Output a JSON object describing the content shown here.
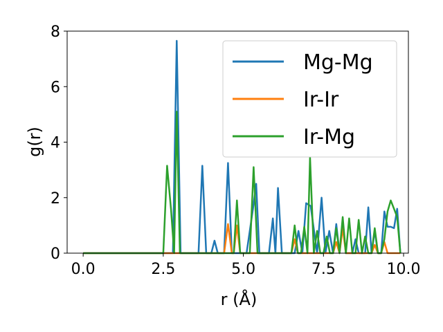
{
  "chart_data": {
    "type": "line",
    "xlabel": "r (Å)",
    "ylabel": "g(r)",
    "xlim": [
      -0.5,
      10.15
    ],
    "ylim": [
      0,
      8
    ],
    "xticks": [
      0.0,
      2.5,
      5.0,
      7.5,
      10.0
    ],
    "xtick_labels": [
      "0.0",
      "2.5",
      "5.0",
      "7.5",
      "10.0"
    ],
    "yticks": [
      0,
      2,
      4,
      6,
      8
    ],
    "ytick_labels": [
      "0",
      "2",
      "4",
      "6",
      "8"
    ],
    "grid": false,
    "legend_position": "top-right",
    "series": [
      {
        "name": "Mg-Mg",
        "color": "#1f77b4",
        "x": [
          0.0,
          2.8,
          2.92,
          3.04,
          3.6,
          3.72,
          3.84,
          4.0,
          4.1,
          4.2,
          4.4,
          4.52,
          4.64,
          5.1,
          5.3,
          5.4,
          5.5,
          5.8,
          5.92,
          6.0,
          6.08,
          6.2,
          6.6,
          6.72,
          6.84,
          6.96,
          7.1,
          7.3,
          7.44,
          7.56,
          7.68,
          7.8,
          7.9,
          8.0,
          8.1,
          8.2,
          8.4,
          8.5,
          8.6,
          8.8,
          8.9,
          9.0,
          9.1,
          9.2,
          9.3,
          9.4,
          9.5,
          9.6,
          9.7,
          9.8,
          9.9
        ],
        "y": [
          0,
          0,
          7.65,
          0,
          0,
          3.15,
          0,
          0,
          0.45,
          0,
          0,
          3.25,
          0,
          0,
          1.6,
          2.5,
          0,
          0,
          1.25,
          0,
          2.35,
          0,
          0,
          0.8,
          0,
          1.8,
          1.7,
          0,
          2.0,
          0,
          0.8,
          0,
          1.05,
          0,
          1.1,
          0,
          0,
          0.5,
          0,
          0,
          1.65,
          0,
          0.8,
          0,
          0,
          1.5,
          0.95,
          0.95,
          0.9,
          1.6,
          0
        ]
      },
      {
        "name": "Ir-Ir",
        "color": "#ff7f0e",
        "x": [
          0.0,
          4.4,
          4.52,
          4.64,
          4.7,
          4.8,
          4.9,
          6.5,
          6.6,
          6.7,
          7.8,
          7.9,
          8.0,
          8.1,
          8.2,
          9.0,
          9.1,
          9.2,
          9.3,
          9.4,
          9.5,
          9.6,
          9.9
        ],
        "y": [
          0,
          0,
          1.05,
          0,
          0,
          1.0,
          0,
          0,
          0.5,
          0,
          0,
          0.4,
          0,
          0.9,
          0,
          0,
          0.3,
          0,
          0,
          0.4,
          0,
          0,
          0
        ]
      },
      {
        "name": "Ir-Mg",
        "color": "#2ca02c",
        "x": [
          0.0,
          2.5,
          2.62,
          2.74,
          2.84,
          2.92,
          3.02,
          4.7,
          4.8,
          4.9,
          5.2,
          5.32,
          5.44,
          6.5,
          6.6,
          6.7,
          6.8,
          6.9,
          7.0,
          7.08,
          7.2,
          7.3,
          7.4,
          7.5,
          7.6,
          7.7,
          7.8,
          7.9,
          8.0,
          8.1,
          8.2,
          8.3,
          8.4,
          8.5,
          8.6,
          8.7,
          8.8,
          8.9,
          9.0,
          9.1,
          9.2,
          9.3,
          9.4,
          9.5,
          9.6,
          9.7,
          9.8,
          9.9
        ],
        "y": [
          0,
          0,
          3.15,
          1.6,
          0,
          5.1,
          0,
          0,
          1.9,
          0,
          0,
          3.1,
          0,
          0,
          1.0,
          0,
          0,
          0.95,
          0,
          3.45,
          0,
          0.8,
          0,
          0,
          0.6,
          0,
          0,
          0.9,
          0,
          1.3,
          0,
          1.25,
          0,
          0,
          1.2,
          0,
          0.6,
          0,
          0,
          0.9,
          0,
          0,
          0.5,
          1.5,
          1.9,
          1.6,
          1.3,
          0
        ]
      }
    ]
  }
}
